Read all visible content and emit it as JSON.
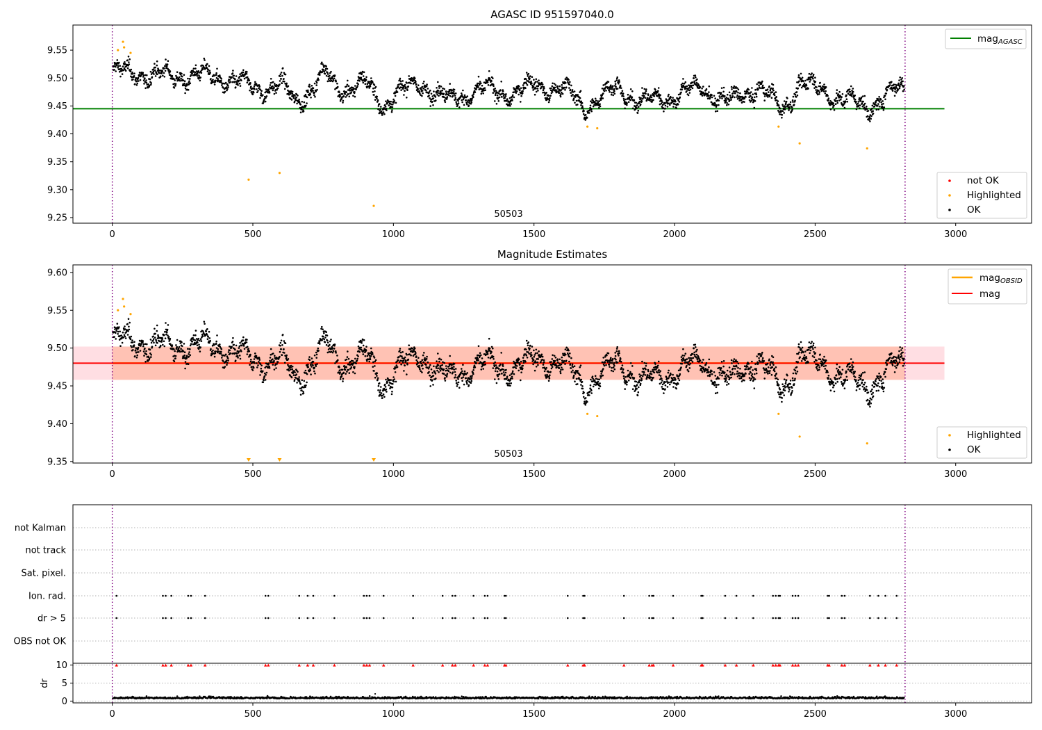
{
  "chart_data": [
    {
      "type": "scatter",
      "title": "AGASC ID 951597040.0",
      "xlim": [
        -140,
        3270
      ],
      "ylim": [
        9.24,
        9.595
      ],
      "xticks": [
        0,
        500,
        1000,
        1500,
        2000,
        2500,
        3000
      ],
      "yticks": [
        "9.25",
        "9.30",
        "9.35",
        "9.40",
        "9.45",
        "9.50",
        "9.55"
      ],
      "annotation": "50503",
      "vlines_x": [
        0,
        2820
      ],
      "hline": {
        "label": "mag_AGASC",
        "y": 9.445,
        "x_range": [
          -140,
          2960
        ],
        "color": "#008000"
      },
      "legend_lines": [
        {
          "name": "mag",
          "sub": "AGASC",
          "color": "#008000"
        }
      ],
      "legend_points": [
        {
          "name": "not OK",
          "color": "#ff0000"
        },
        {
          "name": "Highlighted",
          "color": "#ffa500"
        },
        {
          "name": "OK",
          "color": "#000000"
        }
      ],
      "highlighted": [
        {
          "x": 20,
          "y": 9.55
        },
        {
          "x": 38,
          "y": 9.565
        },
        {
          "x": 42,
          "y": 9.555
        },
        {
          "x": 65,
          "y": 9.545
        },
        {
          "x": 485,
          "y": 9.318
        },
        {
          "x": 595,
          "y": 9.33
        },
        {
          "x": 930,
          "y": 9.271
        },
        {
          "x": 1690,
          "y": 9.413
        },
        {
          "x": 1725,
          "y": 9.41
        },
        {
          "x": 2370,
          "y": 9.413
        },
        {
          "x": 2445,
          "y": 9.383
        },
        {
          "x": 2685,
          "y": 9.374
        }
      ],
      "ok_trend": [
        {
          "x": 0,
          "y": 9.51
        },
        {
          "x": 100,
          "y": 9.508
        },
        {
          "x": 200,
          "y": 9.503
        },
        {
          "x": 300,
          "y": 9.505
        },
        {
          "x": 400,
          "y": 9.5
        },
        {
          "x": 500,
          "y": 9.482
        },
        {
          "x": 600,
          "y": 9.487
        },
        {
          "x": 650,
          "y": 9.458
        },
        {
          "x": 700,
          "y": 9.478
        },
        {
          "x": 760,
          "y": 9.508
        },
        {
          "x": 800,
          "y": 9.48
        },
        {
          "x": 900,
          "y": 9.49
        },
        {
          "x": 960,
          "y": 9.452
        },
        {
          "x": 1000,
          "y": 9.47
        },
        {
          "x": 1100,
          "y": 9.49
        },
        {
          "x": 1200,
          "y": 9.46
        },
        {
          "x": 1300,
          "y": 9.48
        },
        {
          "x": 1400,
          "y": 9.472
        },
        {
          "x": 1500,
          "y": 9.485
        },
        {
          "x": 1600,
          "y": 9.482
        },
        {
          "x": 1680,
          "y": 9.448
        },
        {
          "x": 1750,
          "y": 9.47
        },
        {
          "x": 1800,
          "y": 9.48
        },
        {
          "x": 1900,
          "y": 9.455
        },
        {
          "x": 2000,
          "y": 9.47
        },
        {
          "x": 2100,
          "y": 9.482
        },
        {
          "x": 2200,
          "y": 9.455
        },
        {
          "x": 2300,
          "y": 9.488
        },
        {
          "x": 2380,
          "y": 9.44
        },
        {
          "x": 2450,
          "y": 9.495
        },
        {
          "x": 2500,
          "y": 9.48
        },
        {
          "x": 2600,
          "y": 9.465
        },
        {
          "x": 2680,
          "y": 9.445
        },
        {
          "x": 2750,
          "y": 9.47
        },
        {
          "x": 2820,
          "y": 9.482
        }
      ]
    },
    {
      "type": "scatter",
      "title": "Magnitude Estimates",
      "xlim": [
        -140,
        3270
      ],
      "ylim": [
        9.348,
        9.61
      ],
      "xticks": [
        0,
        500,
        1000,
        1500,
        2000,
        2500,
        3000
      ],
      "yticks": [
        "9.35",
        "9.40",
        "9.45",
        "9.50",
        "9.55",
        "9.60"
      ],
      "annotation": "50503",
      "vlines_x": [
        0,
        2820
      ],
      "mag_line": {
        "y": 9.48,
        "color": "#ff0000",
        "band": [
          9.458,
          9.502
        ],
        "band_color": "#ffb6c1"
      },
      "obsid_line": {
        "y": 9.48,
        "x_range": [
          0,
          2820
        ],
        "band": [
          9.458,
          9.502
        ],
        "color": "#ffa500",
        "band_color": "#ffa07a"
      },
      "legend_lines": [
        {
          "name": "mag",
          "sub": "OBSID",
          "color": "#ffa500"
        },
        {
          "name": "mag",
          "sub": "",
          "color": "#ff0000"
        }
      ],
      "legend_points": [
        {
          "name": "Highlighted",
          "color": "#ffa500"
        },
        {
          "name": "OK",
          "color": "#000000"
        }
      ],
      "highlighted": [
        {
          "x": 20,
          "y": 9.55
        },
        {
          "x": 38,
          "y": 9.565
        },
        {
          "x": 42,
          "y": 9.555
        },
        {
          "x": 65,
          "y": 9.545
        },
        {
          "x": 1690,
          "y": 9.413
        },
        {
          "x": 1725,
          "y": 9.41
        },
        {
          "x": 2370,
          "y": 9.413
        },
        {
          "x": 2445,
          "y": 9.383
        },
        {
          "x": 2685,
          "y": 9.374
        }
      ],
      "below_range_markers_x": [
        485,
        595,
        930
      ]
    },
    {
      "type": "scatter",
      "xlim": [
        -140,
        3270
      ],
      "xticks": [
        0,
        500,
        1000,
        1500,
        2000,
        2500,
        3000
      ],
      "vlines_x": [
        0,
        2820
      ],
      "flag_rows": [
        "not Kalman",
        "not track",
        "Sat. pixel.",
        "Ion. rad.",
        "dr > 5",
        "OBS not OK"
      ],
      "flag_x": [
        15,
        180,
        190,
        210,
        270,
        280,
        330,
        545,
        555,
        665,
        695,
        715,
        790,
        895,
        905,
        915,
        965,
        1070,
        1175,
        1210,
        1220,
        1285,
        1325,
        1335,
        1395,
        1400,
        1620,
        1675,
        1680,
        1820,
        1910,
        1920,
        1925,
        1995,
        2095,
        2100,
        2180,
        2220,
        2280,
        2350,
        2360,
        2370,
        2375,
        2420,
        2430,
        2440,
        2545,
        2550,
        2595,
        2605,
        2695,
        2725,
        2750,
        2790
      ],
      "ylabel": "dr",
      "yticks": [
        "0",
        "5",
        "10"
      ],
      "ylim": [
        -0.5,
        10.5
      ],
      "dr_cap": 10
    }
  ]
}
